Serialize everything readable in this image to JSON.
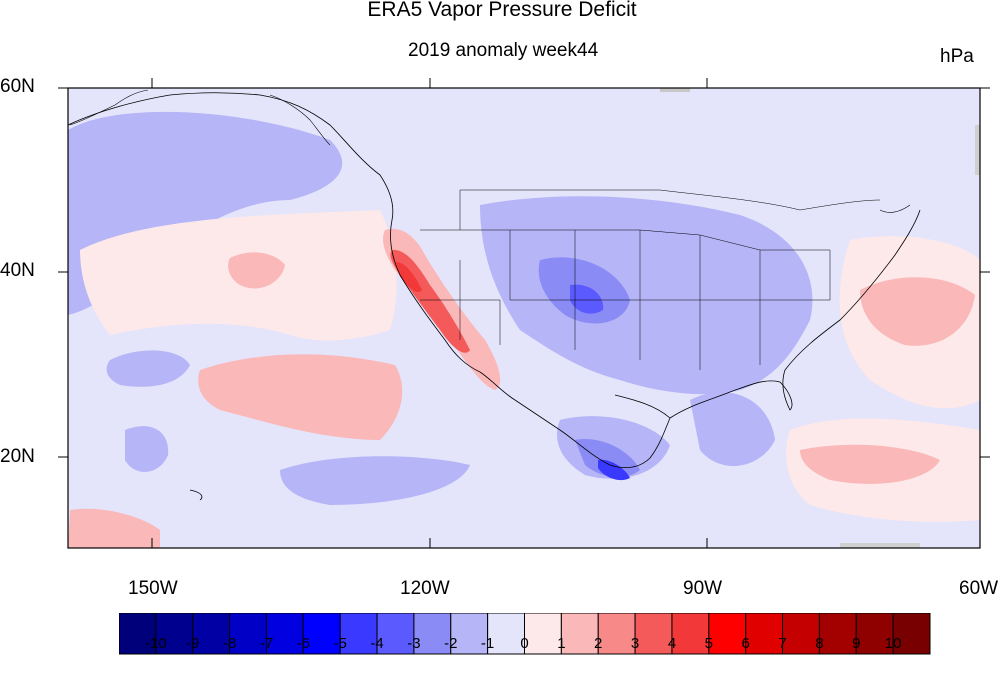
{
  "title": "ERA5 Vapor Pressure Deficit",
  "subtitle": "2019 anomaly week44",
  "units": "hPa",
  "map": {
    "lat_labels": [
      "60N",
      "40N",
      "20N"
    ],
    "lon_labels": [
      "150W",
      "120W",
      "90W",
      "60W"
    ],
    "extent": {
      "lon": [
        -159,
        -60
      ],
      "lat": [
        10,
        60
      ]
    }
  },
  "colorbar": {
    "labels": [
      "-10",
      "-9",
      "-8",
      "-7",
      "-6",
      "-5",
      "-4",
      "-3",
      "-2",
      "-1",
      "0",
      "1",
      "2",
      "3",
      "4",
      "5",
      "6",
      "7",
      "8",
      "9",
      "10"
    ],
    "colors": [
      "#00007a",
      "#00008e",
      "#0000a4",
      "#0000c6",
      "#0000e0",
      "#0000ff",
      "#3939ff",
      "#5a5aff",
      "#8b8bf5",
      "#b5b5f7",
      "#e4e4fb",
      "#fde9e9",
      "#fab8b8",
      "#f78989",
      "#f45a5a",
      "#f23838",
      "#ff0000",
      "#e10000",
      "#c40000",
      "#a30000",
      "#8f0000",
      "#780000"
    ]
  }
}
